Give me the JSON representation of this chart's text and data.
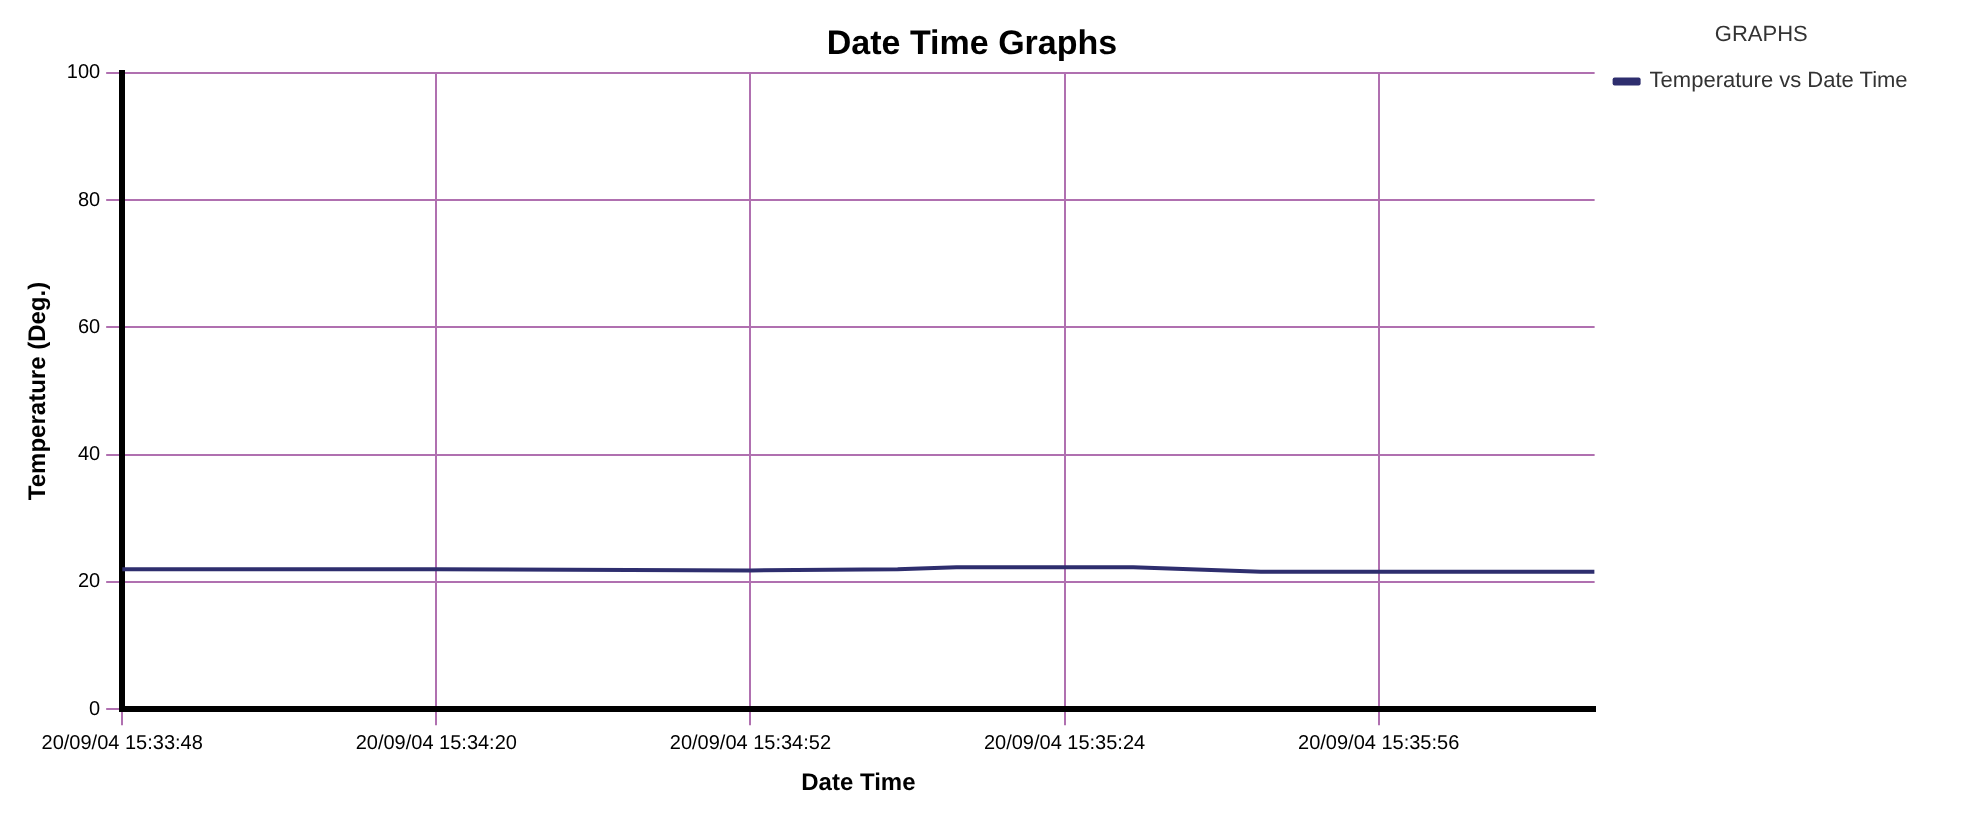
{
  "chart_data": {
    "type": "line",
    "title": "Date Time Graphs",
    "xlabel": "Date Time",
    "ylabel": "Temperature (Deg.)",
    "legend_title": "GRAPHS",
    "legend": "top right",
    "grid": true,
    "marker": "none",
    "line_style": "solid",
    "x": [
      "--09-20T15:33:48",
      "--09-20T15:34:20",
      "--09-20T15:34:52",
      "--09-20T15:35:07",
      "--09-20T15:35:13",
      "--09-20T15:35:31",
      "--09-20T15:35:44",
      "--09-20T15:36:18"
    ],
    "series": [
      {
        "name": "Temperature vs Date Time",
        "color": "#2e2e6e",
        "values": [
          22,
          22,
          21.8,
          22,
          22.3,
          22.3,
          21.6,
          21.6
        ]
      }
    ],
    "xlim": [
      "--09-20T15:33:48",
      "--09-20T15:36:18"
    ],
    "xticks": [
      {
        "value": "--09-20T15:33:48",
        "label": "20/09/04 15:33:48"
      },
      {
        "value": "--09-20T15:34:20",
        "label": "20/09/04 15:34:20"
      },
      {
        "value": "--09-20T15:34:52",
        "label": "20/09/04 15:34:52"
      },
      {
        "value": "--09-20T15:35:24",
        "label": "20/09/04 15:35:24"
      },
      {
        "value": "--09-20T15:35:56",
        "label": "20/09/04 15:35:56"
      }
    ],
    "ylim": [
      0,
      100
    ],
    "yticks": [
      0,
      20,
      40,
      60,
      80,
      100
    ]
  }
}
